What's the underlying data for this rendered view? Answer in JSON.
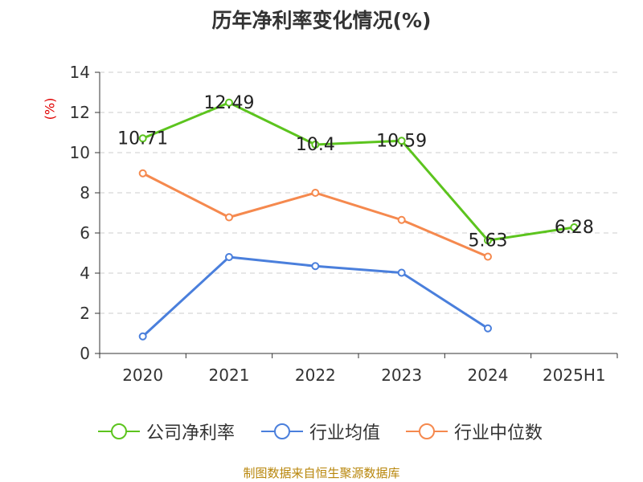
{
  "chart_data": {
    "type": "line",
    "title": "历年净利率变化情况(%)",
    "ylabel": "(%)",
    "xlabel": "",
    "categories": [
      "2020",
      "2021",
      "2022",
      "2023",
      "2024",
      "2025H1"
    ],
    "ylim": [
      0,
      14
    ],
    "yticks": [
      0,
      2,
      4,
      6,
      8,
      10,
      12,
      14
    ],
    "grid": true,
    "legend_position": "bottom",
    "series": [
      {
        "name": "公司净利率",
        "color": "#5cc41e",
        "values": [
          10.71,
          12.49,
          10.4,
          10.59,
          5.63,
          6.28
        ],
        "labels": [
          "10.71",
          "12.49",
          "10.4",
          "10.59",
          "5.63",
          "6.28"
        ]
      },
      {
        "name": "行业均值",
        "color": "#4a7fdc",
        "values": [
          0.85,
          4.8,
          4.35,
          4.02,
          1.25,
          null
        ]
      },
      {
        "name": "行业中位数",
        "color": "#f5894e",
        "values": [
          8.97,
          6.78,
          8.0,
          6.65,
          4.82,
          null
        ]
      }
    ]
  },
  "source_text": "制图数据来自恒生聚源数据库"
}
